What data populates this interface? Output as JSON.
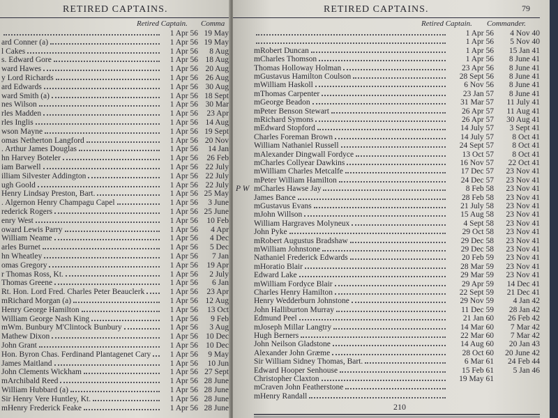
{
  "left_page": {
    "header": "RETIRED CAPTAINS.",
    "col_retired": "Retired Captain.",
    "col_commander": "Comma",
    "rows": [
      {
        "name": "",
        "retired": "1 Apr 56",
        "commander": "19 May"
      },
      {
        "name": "ard Conner (a)",
        "retired": "1 Apr 56",
        "commander": "19 May"
      },
      {
        "name": "l Cakes",
        "retired": "1 Apr 56",
        "commander": "8 Aug"
      },
      {
        "name": "s. Edward Gore",
        "retired": "1 Apr 56",
        "commander": "18 Aug"
      },
      {
        "name": "ward Hawes",
        "retired": "1 Apr 56",
        "commander": "20 Aug"
      },
      {
        "name": "y Lord Richards",
        "retired": "1 Apr 56",
        "commander": "26 Aug"
      },
      {
        "name": "ard Edwards",
        "retired": "1 Apr 56",
        "commander": "30 Aug"
      },
      {
        "name": "ward Smith (a)",
        "retired": "1 Apr 56",
        "commander": "18 Sept"
      },
      {
        "name": "nes Wilson",
        "retired": "1 Apr 56",
        "commander": "30 Mar"
      },
      {
        "name": "rles Madden",
        "retired": "1 Apr 56",
        "commander": "23 Apr"
      },
      {
        "name": "rles Inglis",
        "retired": "1 Apr 56",
        "commander": "14 Aug"
      },
      {
        "name": "wson Mayne",
        "retired": "1 Apr 56",
        "commander": "19 Sept"
      },
      {
        "name": "omas Netherton Langford",
        "retired": "1 Apr 56",
        "commander": "20 Nov"
      },
      {
        "name": ". Arthur James Douglas",
        "retired": "1 Apr 56",
        "commander": "14 Jan"
      },
      {
        "name": "hn Harvey Boteler",
        "retired": "1 Apr 56",
        "commander": "26 Feb"
      },
      {
        "name": "iam Barwell",
        "retired": "1 Apr 56",
        "commander": "22 July"
      },
      {
        "name": "illiam Silvester Addington",
        "retired": "1 Apr 56",
        "commander": "22 July"
      },
      {
        "name": "ugh Goold",
        "retired": "1 Apr 56",
        "commander": "22 July"
      },
      {
        "name": "Henry Lindsay Preston, Bart.",
        "retired": "1 Apr 56",
        "commander": "25 May"
      },
      {
        "name": ". Algernon Henry Champagu Capel",
        "retired": "1 Apr 56",
        "commander": "3 June"
      },
      {
        "name": "rederick Rogers",
        "retired": "1 Apr 56",
        "commander": "25 June"
      },
      {
        "name": "enry West",
        "retired": "1 Apr 56",
        "commander": "10 Feb"
      },
      {
        "name": "oward Lewis Parry",
        "retired": "1 Apr 56",
        "commander": "4 Apr"
      },
      {
        "name": "William Neame",
        "retired": "1 Apr 56",
        "commander": "4 Dec"
      },
      {
        "name": "arles Burnet",
        "retired": "1 Apr 56",
        "commander": "5 Dec"
      },
      {
        "name": "hn Wheatley",
        "retired": "1 Apr 56",
        "commander": "7 Jan"
      },
      {
        "name": "omas Gregory",
        "retired": "1 Apr 56",
        "commander": "19 Apr"
      },
      {
        "name": "r Thomas Ross, Kt.",
        "retired": "1 Apr 56",
        "commander": "2 July"
      },
      {
        "name": "Thomas Greene",
        "retired": "1 Apr 56",
        "commander": "6 Jan"
      },
      {
        "name": "Rt. Hon. Lord Fred. Charles Peter Beauclerk",
        "retired": "1 Apr 56",
        "commander": "23 Apr"
      },
      {
        "name": "mRichard Morgan (a)",
        "retired": "1 Apr 56",
        "commander": "12 Aug"
      },
      {
        "name": "Henry George Hamilton",
        "retired": "1 Apr 56",
        "commander": "13 Oct"
      },
      {
        "name": "William George Nash King",
        "retired": "1 Apr 56",
        "commander": "9 Feb"
      },
      {
        "name": "mWm. Bunbury M'Clintock Bunbury",
        "retired": "1 Apr 56",
        "commander": "3 Aug"
      },
      {
        "name": "Mathew Dixon",
        "retired": "1 Apr 56",
        "commander": "10 Dec"
      },
      {
        "name": "John Grant",
        "retired": "1 Apr 56",
        "commander": "10 Dec"
      },
      {
        "name": "Hon. Byron Chas. Ferdinand Plantagenet Cary",
        "retired": "1 Apr 56",
        "commander": "9 May"
      },
      {
        "name": "James Maitland",
        "retired": "1 Apr 56",
        "commander": "10 Jun"
      },
      {
        "name": "John Clements Wickham",
        "retired": "1 Apr 56",
        "commander": "27 Sept"
      },
      {
        "name": "mArchibald Reed",
        "retired": "1 Apr 56",
        "commander": "28 June"
      },
      {
        "name": "William Hubbard (a)",
        "retired": "1 Apr 56",
        "commander": "28 June"
      },
      {
        "name": "Sir Henry Vere Huntley, Kt.",
        "retired": "1 Apr 56",
        "commander": "28 June"
      },
      {
        "name": "mHenry Frederick Feake",
        "retired": "1 Apr 56",
        "commander": "28 June"
      }
    ]
  },
  "right_page": {
    "header": "RETIRED CAPTAINS.",
    "page_number": "79",
    "col_retired": "Retired Captain.",
    "col_commander": "Commander.",
    "margin_note": "P W",
    "signature_number": "210",
    "rows": [
      {
        "name": "",
        "retired": "1 Apr 56",
        "commander": "4 Nov 40"
      },
      {
        "name": "",
        "retired": "1 Apr 56",
        "commander": "5 Nov 40"
      },
      {
        "name": "mRobert Duncan",
        "retired": "1 Apr 56",
        "commander": "15 Jan 41"
      },
      {
        "name": "mCharles Thomson",
        "retired": "1 Apr 56",
        "commander": "8 June 41"
      },
      {
        "name": "Thomas Holloway Holman",
        "retired": "23 Apr 56",
        "commander": "8 June 41"
      },
      {
        "name": "mGustavus Hamilton Coulson",
        "retired": "28 Sept 56",
        "commander": "8 June 41"
      },
      {
        "name": "mWilliam Haskoll",
        "retired": "6 Nov 56",
        "commander": "8 June 41"
      },
      {
        "name": "mThomas Carpenter",
        "retired": "23 Jan 57",
        "commander": "8 June 41"
      },
      {
        "name": "mGeorge Beadon",
        "retired": "31 Mar 57",
        "commander": "11 July 41"
      },
      {
        "name": "mPeter Benson Stewart",
        "retired": "26 Apr 57",
        "commander": "11 Aug 41"
      },
      {
        "name": "mRichard Symons",
        "retired": "26 Apr 57",
        "commander": "30 Aug 41"
      },
      {
        "name": "mEdward Stopford",
        "retired": "14 July 57",
        "commander": "3 Sept 41"
      },
      {
        "name": "Charles Foreman Brown",
        "retired": "14 July 57",
        "commander": "8 Oct 41"
      },
      {
        "name": "William Nathaniel Russell",
        "retired": "24 Sept 57",
        "commander": "8 Oct 41"
      },
      {
        "name": "mAlexander Dingwall Fordyce",
        "retired": "13 Oct 57",
        "commander": "8 Oct 41"
      },
      {
        "name": "mCharles Collyear Dawkins",
        "retired": "16 Nov 57",
        "commander": "22 Oct 41"
      },
      {
        "name": "mWilliam Charles Metcalfe",
        "retired": "17 Dec 57",
        "commander": "23 Nov 41"
      },
      {
        "name": "mPeter William Hamilton",
        "retired": "24 Dec 57",
        "commander": "23 Nov 41"
      },
      {
        "name": "mCharles Hawse Jay",
        "retired": "8 Feb 58",
        "commander": "23 Nov 41"
      },
      {
        "name": "James Bance",
        "retired": "28 Feb 58",
        "commander": "23 Nov 41"
      },
      {
        "name": "mGustavus Evans",
        "retired": "21 July 58",
        "commander": "23 Nov 41"
      },
      {
        "name": "mJohn Willson",
        "retired": "15 Aug 58",
        "commander": "23 Nov 41"
      },
      {
        "name": "William Hargraves Molyneux",
        "retired": "4 Sept 58",
        "commander": "23 Nov 41"
      },
      {
        "name": "John Pyke",
        "retired": "29 Oct 58",
        "commander": "23 Nov 41"
      },
      {
        "name": "mRobert Augustus Bradshaw",
        "retired": "29 Dec 58",
        "commander": "23 Nov 41"
      },
      {
        "name": "mWilliam Johnstone",
        "retired": "29 Dec 58",
        "commander": "23 Nov 41"
      },
      {
        "name": "Nathaniel Frederick Edwards",
        "retired": "20 Feb 59",
        "commander": "23 Nov 41"
      },
      {
        "name": "mHoratio Blair",
        "retired": "28 Mar 59",
        "commander": "23 Nov 41"
      },
      {
        "name": "Edward Lake",
        "retired": "29 Mar 59",
        "commander": "23 Nov 41"
      },
      {
        "name": "mWilliam Fordyce Blair",
        "retired": "29 Apr 59",
        "commander": "14 Dec 41"
      },
      {
        "name": "Charles Henry Hamilton",
        "retired": "22 Sept 59",
        "commander": "21 Dec 41"
      },
      {
        "name": "Henry Wedderburn Johnstone",
        "retired": "29 Nov 59",
        "commander": "4 Jan 42"
      },
      {
        "name": "John Halliburton Murray",
        "retired": "11 Dec 59",
        "commander": "28 Jan 42"
      },
      {
        "name": "Edmund Peel",
        "retired": "21 Jan 60",
        "commander": "26 Feb 42"
      },
      {
        "name": "mJoseph Millar Langtry",
        "retired": "14 Mar 60",
        "commander": "7 Mar 42"
      },
      {
        "name": "Hugh Berners",
        "retired": "22 Mar 60",
        "commander": "7 Mar 42"
      },
      {
        "name": "John Neilson Gladstone",
        "retired": "14 Aug 60",
        "commander": "20 Jan 43"
      },
      {
        "name": "Alexander John Græme",
        "retired": "28 Oct 60",
        "commander": "20 June 42"
      },
      {
        "name": "Sir William Sidney Thomas, Bart.",
        "retired": "6 Mar 61",
        "commander": "24 Feb 44"
      },
      {
        "name": "Edward Hooper Senhouse",
        "retired": "15 Feb 61",
        "commander": "5 Jan 46"
      },
      {
        "name": "Christopher Claxton",
        "retired": "19 May 61",
        "commander": ""
      },
      {
        "name": "mCraven John Featherstone",
        "retired": "",
        "commander": ""
      },
      {
        "name": "mHenry Randall",
        "retired": "",
        "commander": ""
      }
    ]
  }
}
